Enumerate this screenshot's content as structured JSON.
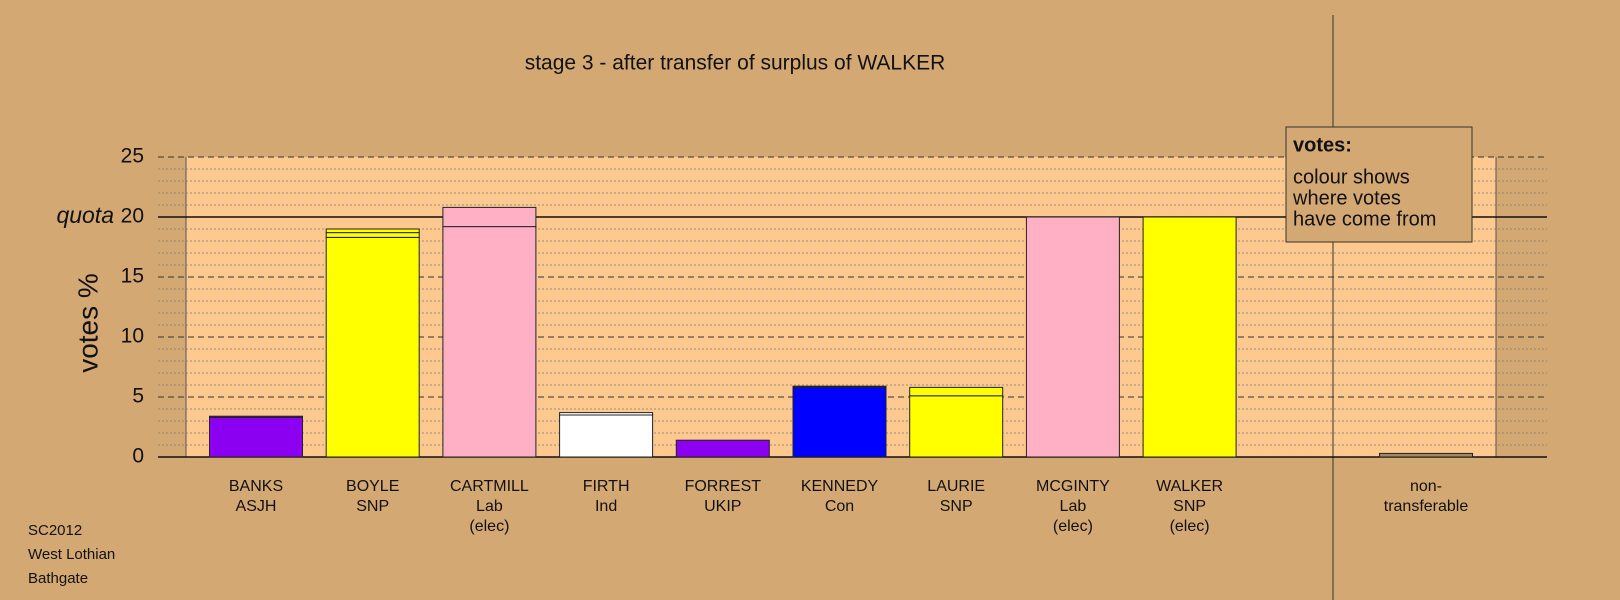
{
  "chart_data": {
    "type": "stacked-bar",
    "title": "stage 3 - after transfer of surplus of WALKER",
    "y_label": "votes %",
    "quota": 20,
    "quota_label": "quota",
    "categories": [
      [
        "BANKS",
        "ASJH"
      ],
      [
        "BOYLE",
        "SNP"
      ],
      [
        "CARTMILL",
        "Lab",
        "(elec)"
      ],
      [
        "FIRTH",
        "Ind"
      ],
      [
        "FORREST",
        "UKIP"
      ],
      [
        "KENNEDY",
        "Con"
      ],
      [
        "LAURIE",
        "SNP"
      ],
      [
        "MCGINTY",
        "Lab",
        "(elec)"
      ],
      [
        "WALKER",
        "SNP",
        "(elec)"
      ],
      [
        "non-",
        "transferable"
      ]
    ],
    "colors": [
      "#8b00f0",
      "#ffff00",
      "#ffb0c4",
      "#ffffff",
      "#8b00f0",
      "#0000ff",
      "#ffff00",
      "#ffb0c4",
      "#ffff00",
      "#a08a5c"
    ],
    "series": [
      {
        "values": [
          3.3,
          18.3,
          19.2,
          3.5,
          1.4,
          5.8,
          5.1,
          20,
          20,
          0.3
        ]
      },
      {
        "values": [
          0,
          0.4,
          1.6,
          0,
          0,
          0,
          0,
          0,
          0,
          0
        ]
      },
      {
        "values": [
          0.1,
          0.3,
          0,
          0.2,
          0,
          0.1,
          0.7,
          0,
          0,
          0
        ]
      }
    ],
    "ylim": [
      0,
      25
    ],
    "yticks": [
      0,
      5,
      10,
      15,
      20,
      25
    ],
    "minor_yticks": [
      1,
      2,
      3,
      4,
      6,
      7,
      8,
      9,
      11,
      12,
      13,
      14,
      16,
      17,
      18,
      19,
      21,
      22,
      23,
      24
    ],
    "legend": {
      "title": "votes:",
      "lines": [
        "colour shows",
        "where votes",
        "have come from"
      ]
    },
    "footer": [
      "SC2012",
      "West Lothian",
      "Bathgate"
    ]
  }
}
